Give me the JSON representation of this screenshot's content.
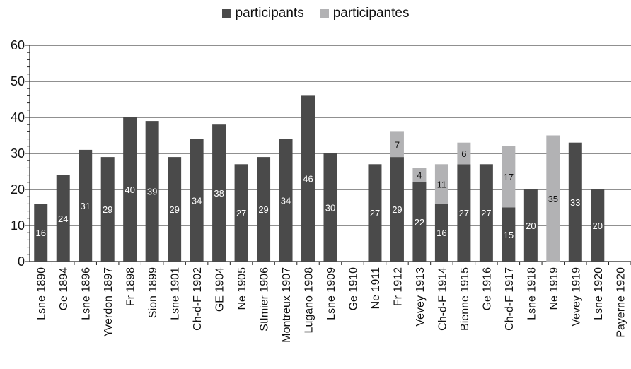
{
  "chart_data": {
    "type": "bar",
    "stacked": true,
    "categories": [
      "Lsne 1890",
      "Ge 1894",
      "Lsne 1896",
      "Yverdon 1897",
      "Fr 1898",
      "Sion 1899",
      "Lsne 1901",
      "Ch-d-F 1902",
      "GE 1904",
      "Ne 1905",
      "StImier 1906",
      "Montreux 1907",
      "Lugano 1908",
      "Lsne 1909",
      "Ge 1910",
      "Ne 1911",
      "Fr 1912",
      "Vevey 1913",
      "Ch-d-F 1914",
      "Bienne 1915",
      "Ge 1916",
      "Ch-d-F 1917",
      "Lsne 1918",
      "Ne 1919",
      "Vevey 1919",
      "Lsne 1920",
      "Payerne 1920"
    ],
    "series": [
      {
        "name": "participants",
        "color": "#4a4a4a",
        "label_color": "#ffffff",
        "values": [
          16,
          24,
          31,
          29,
          40,
          39,
          29,
          34,
          38,
          27,
          29,
          34,
          46,
          30,
          0,
          27,
          29,
          22,
          16,
          27,
          27,
          15,
          20,
          0,
          33,
          20,
          0
        ]
      },
      {
        "name": "participantes",
        "color": "#b2b2b4",
        "label_color": "#111111",
        "values": [
          0,
          0,
          0,
          0,
          0,
          0,
          0,
          0,
          0,
          0,
          0,
          0,
          0,
          0,
          0,
          0,
          7,
          4,
          11,
          6,
          0,
          17,
          0,
          35,
          0,
          0,
          0
        ]
      }
    ],
    "ylim": [
      0,
      60
    ],
    "yticks": [
      "0",
      "10",
      "20",
      "30",
      "40",
      "50",
      "60"
    ],
    "grid": true,
    "legend": "top-center",
    "title": "",
    "xlabel": "",
    "ylabel": ""
  }
}
